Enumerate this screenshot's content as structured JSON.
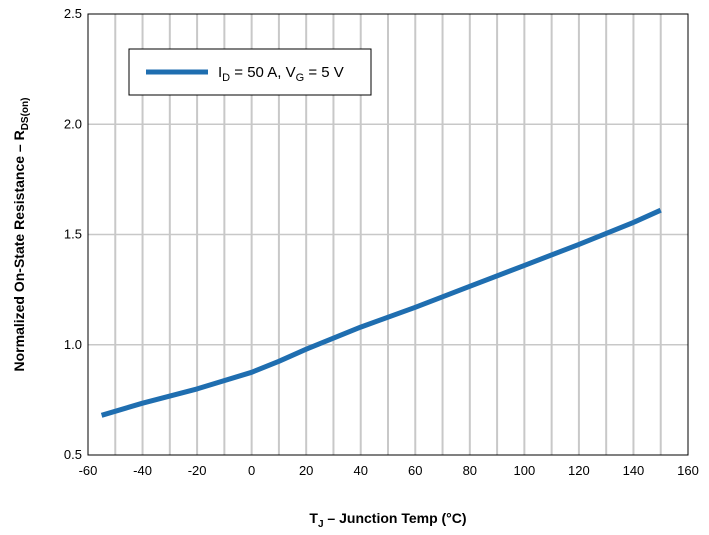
{
  "chart_data": {
    "type": "line",
    "xlabel": {
      "main": "T",
      "sub": "J",
      "rest": " – Junction Temp (°C)"
    },
    "ylabel": {
      "main": "Normalized On-State Resistance – R",
      "sub": "DS(on)"
    },
    "xlim": [
      -60,
      160
    ],
    "ylim": [
      0.5,
      2.5
    ],
    "x_ticks": [
      -60,
      -40,
      -20,
      0,
      20,
      40,
      60,
      80,
      100,
      120,
      140,
      160
    ],
    "y_ticks": [
      0.5,
      1.0,
      1.5,
      2.0,
      2.5
    ],
    "x_tick_labels": [
      "-60",
      "-40",
      "-20",
      "0",
      "20",
      "40",
      "60",
      "80",
      "100",
      "120",
      "140",
      "160"
    ],
    "y_tick_labels": [
      "0.5",
      "1.0",
      "1.5",
      "2.0",
      "2.5"
    ],
    "x_minor_step": 10,
    "grid": true,
    "legend": {
      "placement": "top-left",
      "parts": [
        {
          "t": "I",
          "s": false
        },
        {
          "t": "D",
          "s": true
        },
        {
          "t": " = 50 A, V",
          "s": false
        },
        {
          "t": "G",
          "s": true
        },
        {
          "t": " = 5 V",
          "s": false
        }
      ]
    },
    "series": [
      {
        "color": "#1f6eb0",
        "x": [
          -55,
          -40,
          -20,
          0,
          10,
          20,
          40,
          60,
          80,
          100,
          120,
          140,
          150
        ],
        "y": [
          0.68,
          0.735,
          0.8,
          0.875,
          0.925,
          0.98,
          1.08,
          1.17,
          1.265,
          1.36,
          1.455,
          1.555,
          1.61
        ]
      }
    ]
  }
}
